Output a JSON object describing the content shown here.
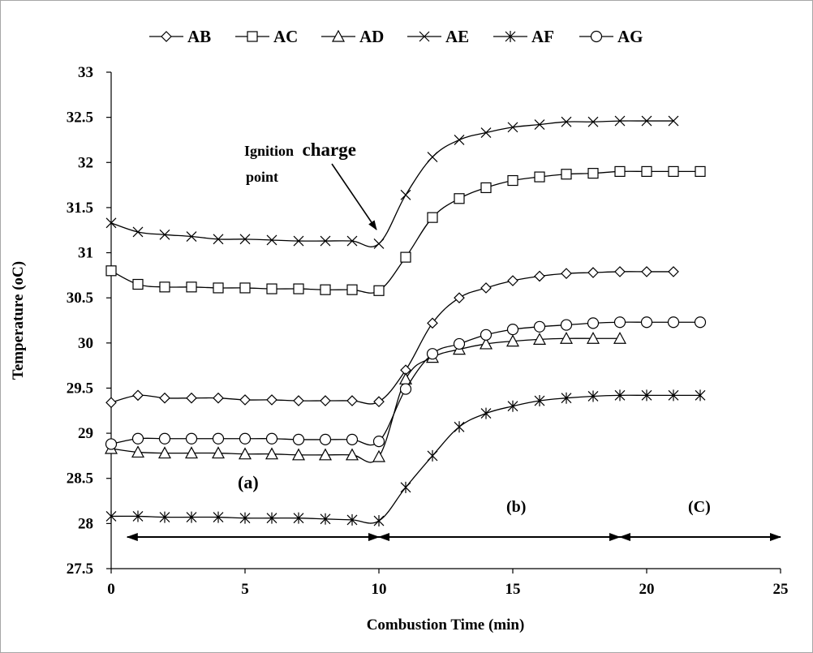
{
  "chart_data": {
    "type": "line",
    "xlabel": "Combustion  Time (min)",
    "ylabel": "Temperature  (oC)",
    "xlim": [
      0,
      25
    ],
    "ylim": [
      27.5,
      33
    ],
    "xticks": [
      "0",
      "5",
      "10",
      "15",
      "20",
      "25"
    ],
    "yticks": [
      "27.5",
      "28",
      "28.5",
      "29",
      "29.5",
      "30",
      "30.5",
      "31",
      "31.5",
      "32",
      "32.5",
      "33"
    ],
    "grid": false,
    "legend_position": "top",
    "series": [
      {
        "name": "AB",
        "marker": "diamond",
        "x": [
          0,
          1,
          2,
          3,
          4,
          5,
          6,
          7,
          8,
          9,
          10,
          11,
          12,
          13,
          14,
          15,
          16,
          17,
          18,
          19,
          20,
          21
        ],
        "y": [
          29.34,
          29.42,
          29.39,
          29.39,
          29.39,
          29.37,
          29.37,
          29.36,
          29.36,
          29.36,
          29.35,
          29.7,
          30.22,
          30.5,
          30.61,
          30.69,
          30.74,
          30.77,
          30.78,
          30.79,
          30.79,
          30.79
        ]
      },
      {
        "name": "AC",
        "marker": "square",
        "x": [
          0,
          1,
          2,
          3,
          4,
          5,
          6,
          7,
          8,
          9,
          10,
          11,
          12,
          13,
          14,
          15,
          16,
          17,
          18,
          19,
          20,
          21,
          22
        ],
        "y": [
          30.8,
          30.65,
          30.62,
          30.62,
          30.61,
          30.61,
          30.6,
          30.6,
          30.59,
          30.59,
          30.58,
          30.95,
          31.39,
          31.6,
          31.72,
          31.8,
          31.84,
          31.87,
          31.88,
          31.9,
          31.9,
          31.9,
          31.9
        ]
      },
      {
        "name": "AD",
        "marker": "triangle",
        "x": [
          0,
          1,
          2,
          3,
          4,
          5,
          6,
          7,
          8,
          9,
          10,
          11,
          12,
          13,
          14,
          15,
          16,
          17,
          18,
          19
        ],
        "y": [
          28.83,
          28.79,
          28.78,
          28.78,
          28.78,
          28.77,
          28.77,
          28.76,
          28.76,
          28.76,
          28.74,
          29.6,
          29.84,
          29.93,
          29.99,
          30.02,
          30.04,
          30.05,
          30.05,
          30.05
        ]
      },
      {
        "name": "AE",
        "marker": "x",
        "x": [
          0,
          1,
          2,
          3,
          4,
          5,
          6,
          7,
          8,
          9,
          10,
          11,
          12,
          13,
          14,
          15,
          16,
          17,
          18,
          19,
          20,
          21
        ],
        "y": [
          31.33,
          31.23,
          31.2,
          31.18,
          31.15,
          31.15,
          31.14,
          31.13,
          31.13,
          31.13,
          31.1,
          31.64,
          32.06,
          32.25,
          32.33,
          32.39,
          32.42,
          32.45,
          32.45,
          32.46,
          32.46,
          32.46
        ]
      },
      {
        "name": "AF",
        "marker": "asterisk",
        "x": [
          0,
          1,
          2,
          3,
          4,
          5,
          6,
          7,
          8,
          9,
          10,
          11,
          12,
          13,
          14,
          15,
          16,
          17,
          18,
          19,
          20,
          21,
          22
        ],
        "y": [
          28.08,
          28.08,
          28.07,
          28.07,
          28.07,
          28.06,
          28.06,
          28.06,
          28.05,
          28.04,
          28.03,
          28.4,
          28.75,
          29.07,
          29.22,
          29.3,
          29.36,
          29.39,
          29.41,
          29.42,
          29.42,
          29.42,
          29.42
        ]
      },
      {
        "name": "AG",
        "marker": "circle",
        "x": [
          0,
          1,
          2,
          3,
          4,
          5,
          6,
          7,
          8,
          9,
          10,
          11,
          12,
          13,
          14,
          15,
          16,
          17,
          18,
          19,
          20,
          21,
          22
        ],
        "y": [
          28.88,
          28.94,
          28.94,
          28.94,
          28.94,
          28.94,
          28.94,
          28.93,
          28.93,
          28.93,
          28.91,
          29.49,
          29.88,
          29.99,
          30.09,
          30.15,
          30.18,
          30.2,
          30.22,
          30.23,
          30.23,
          30.23,
          30.23
        ]
      }
    ],
    "annotations": [
      {
        "label": "Ignition",
        "sub_label": "charge",
        "line2": "point",
        "target_x": 10,
        "target_y": 31.1
      },
      {
        "label": "(a)"
      },
      {
        "label": "(b)"
      },
      {
        "label": "(C)"
      }
    ],
    "phase_arrows": [
      {
        "from_x": 0.6,
        "to_x": 10,
        "y": 27.85
      },
      {
        "from_x": 10,
        "to_x": 19,
        "y": 27.85
      },
      {
        "from_x": 19,
        "to_x": 25,
        "y": 27.85
      }
    ]
  }
}
